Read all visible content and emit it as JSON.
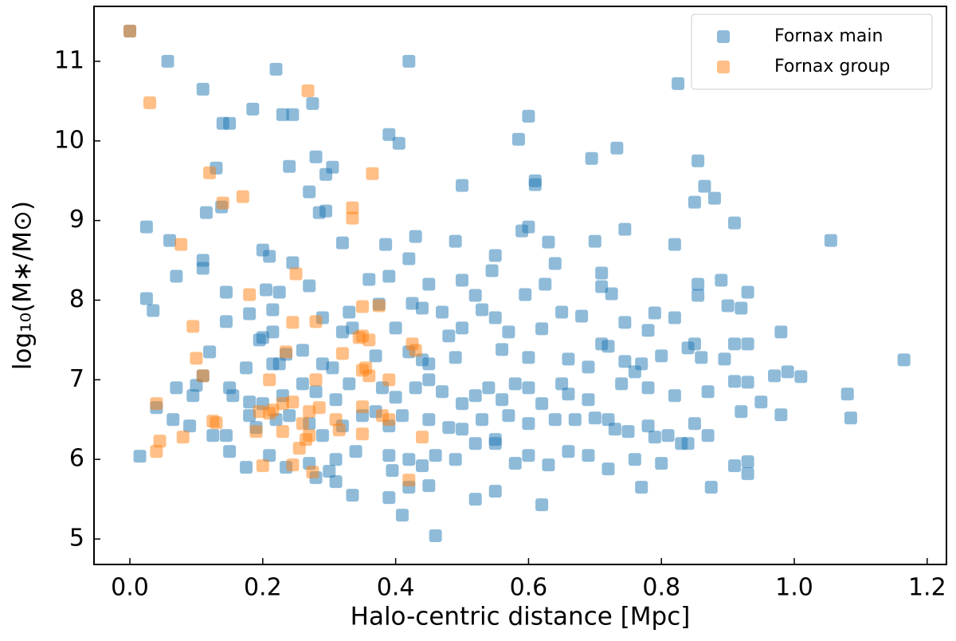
{
  "chart_data": {
    "type": "scatter",
    "xlabel": "Halo-centric distance [Mpc]",
    "ylabel": "log₁₀(M∗/M⊙)",
    "xlim": [
      -0.054,
      1.229
    ],
    "ylim": [
      4.68,
      11.69
    ],
    "xticks": [
      {
        "value": 0,
        "label": "0.0"
      },
      0.2,
      0.4,
      0.6,
      0.8,
      {
        "value": 1,
        "label": "1.0"
      },
      1.2
    ],
    "yticks": [
      5,
      6,
      7,
      8,
      9,
      10,
      11
    ],
    "legend": "upper right",
    "series": [
      {
        "name": "Fornax main",
        "color": "#1f77b4",
        "x": [
          0.0,
          0.057,
          0.11,
          0.22,
          0.42,
          0.825,
          0.275,
          0.185,
          0.14,
          0.15,
          0.23,
          0.245,
          0.39,
          0.405,
          0.6,
          0.585,
          0.733,
          0.695,
          0.855,
          0.28,
          0.13,
          0.24,
          0.295,
          0.305,
          0.27,
          0.5,
          0.61,
          0.61,
          0.865,
          0.88,
          0.85,
          0.115,
          0.138,
          0.285,
          0.295,
          0.025,
          0.6,
          0.59,
          0.745,
          0.91,
          1.055,
          0.06,
          0.7,
          0.63,
          0.43,
          0.49,
          0.32,
          0.385,
          0.82,
          0.2,
          0.11,
          0.11,
          0.21,
          0.245,
          0.42,
          0.55,
          0.64,
          0.07,
          0.39,
          0.36,
          0.5,
          0.545,
          0.71,
          0.89,
          0.855,
          0.625,
          0.45,
          0.27,
          0.205,
          0.145,
          0.225,
          0.52,
          0.595,
          0.71,
          0.725,
          0.93,
          0.025,
          0.035,
          0.855,
          0.425,
          0.44,
          0.375,
          0.33,
          0.29,
          0.18,
          0.215,
          0.47,
          0.53,
          0.65,
          0.68,
          0.79,
          0.82,
          0.92,
          0.9,
          0.145,
          0.2,
          0.215,
          0.195,
          0.32,
          0.335,
          0.4,
          0.48,
          0.5,
          0.55,
          0.57,
          0.62,
          0.71,
          0.72,
          0.745,
          0.78,
          0.85,
          0.84,
          0.91,
          0.98,
          0.93,
          0.12,
          0.175,
          0.215,
          0.225,
          0.235,
          0.26,
          0.29,
          0.305,
          0.37,
          0.42,
          0.44,
          0.45,
          0.49,
          0.56,
          0.6,
          0.66,
          0.69,
          0.745,
          0.76,
          0.77,
          0.8,
          0.86,
          0.895,
          0.97,
          0.99,
          1.01,
          1.165,
          0.11,
          0.1,
          0.07,
          0.095,
          0.15,
          0.155,
          0.18,
          0.2,
          0.23,
          0.26,
          0.28,
          0.31,
          0.33,
          0.38,
          0.4,
          0.43,
          0.45,
          0.47,
          0.5,
          0.52,
          0.54,
          0.56,
          0.58,
          0.6,
          0.62,
          0.65,
          0.66,
          0.69,
          0.72,
          0.74,
          0.78,
          0.82,
          0.87,
          0.91,
          0.93,
          0.95,
          0.04,
          0.065,
          0.09,
          0.125,
          0.145,
          0.18,
          0.19,
          0.22,
          0.24,
          0.27,
          0.29,
          0.32,
          0.35,
          0.37,
          0.39,
          0.41,
          0.45,
          0.48,
          0.5,
          0.53,
          0.55,
          0.57,
          0.6,
          0.64,
          0.67,
          0.7,
          0.73,
          0.75,
          0.78,
          0.79,
          0.81,
          0.83,
          0.85,
          0.87,
          0.92,
          0.98,
          1.08,
          1.085,
          0.015,
          0.15,
          0.175,
          0.21,
          0.235,
          0.27,
          0.3,
          0.31,
          0.34,
          0.39,
          0.42,
          0.44,
          0.46,
          0.49,
          0.52,
          0.55,
          0.58,
          0.6,
          0.63,
          0.66,
          0.69,
          0.72,
          0.76,
          0.8,
          0.84,
          0.91,
          0.93,
          0.93,
          0.28,
          0.31,
          0.335,
          0.39,
          0.42,
          0.45,
          0.52,
          0.55,
          0.77,
          0.875,
          0.62,
          0.41,
          0.46,
          0.395
        ],
        "values": [
          11.38,
          11.0,
          10.65,
          10.9,
          11.0,
          10.72,
          10.47,
          10.4,
          10.22,
          10.22,
          10.33,
          10.33,
          10.08,
          9.97,
          10.31,
          10.02,
          9.91,
          9.78,
          9.75,
          9.8,
          9.66,
          9.68,
          9.58,
          9.67,
          9.36,
          9.44,
          9.5,
          9.45,
          9.43,
          9.28,
          9.23,
          9.1,
          9.17,
          9.1,
          9.12,
          8.92,
          8.92,
          8.87,
          8.89,
          8.97,
          8.75,
          8.75,
          8.74,
          8.73,
          8.8,
          8.74,
          8.72,
          8.7,
          8.7,
          8.63,
          8.5,
          8.4,
          8.55,
          8.47,
          8.52,
          8.56,
          8.46,
          8.3,
          8.3,
          8.26,
          8.25,
          8.37,
          8.34,
          8.25,
          8.2,
          8.2,
          8.2,
          8.18,
          8.13,
          8.1,
          8.1,
          8.06,
          8.07,
          8.17,
          8.08,
          8.1,
          8.02,
          7.87,
          8.06,
          7.96,
          7.9,
          7.95,
          7.85,
          7.78,
          7.83,
          7.88,
          7.85,
          7.88,
          7.85,
          7.8,
          7.84,
          7.78,
          7.9,
          7.93,
          7.73,
          7.53,
          7.6,
          7.5,
          7.6,
          7.65,
          7.65,
          7.55,
          7.65,
          7.78,
          7.6,
          7.64,
          7.45,
          7.42,
          7.72,
          7.62,
          7.45,
          7.4,
          7.45,
          7.6,
          7.45,
          7.35,
          7.15,
          7.2,
          7.2,
          7.32,
          7.37,
          7.2,
          7.15,
          7.3,
          7.35,
          7.25,
          7.2,
          7.28,
          7.38,
          7.28,
          7.26,
          7.16,
          7.23,
          7.1,
          7.2,
          7.3,
          7.28,
          7.26,
          7.05,
          7.1,
          7.04,
          7.25,
          7.05,
          6.93,
          6.9,
          6.8,
          6.9,
          6.8,
          6.72,
          6.7,
          6.8,
          6.95,
          6.85,
          6.75,
          6.95,
          6.9,
          6.78,
          6.9,
          7.0,
          6.85,
          6.7,
          6.8,
          6.9,
          6.75,
          6.95,
          6.9,
          6.7,
          6.95,
          6.82,
          6.75,
          6.5,
          6.95,
          6.9,
          6.8,
          6.85,
          6.98,
          6.97,
          6.72,
          6.65,
          6.5,
          6.42,
          6.3,
          6.3,
          6.55,
          6.4,
          6.5,
          6.55,
          6.45,
          6.3,
          6.42,
          6.55,
          6.6,
          6.42,
          6.55,
          6.5,
          6.4,
          6.38,
          6.5,
          6.2,
          6.55,
          6.45,
          6.5,
          6.5,
          6.52,
          6.38,
          6.35,
          6.42,
          6.28,
          6.3,
          6.2,
          6.45,
          6.3,
          6.6,
          6.56,
          6.82,
          6.52,
          6.04,
          6.1,
          5.9,
          6.05,
          5.9,
          5.95,
          5.85,
          6.0,
          6.1,
          6.05,
          6.0,
          5.92,
          6.05,
          6.0,
          6.2,
          6.25,
          5.95,
          6.05,
          5.93,
          6.1,
          6.05,
          5.88,
          6.0,
          5.95,
          6.2,
          5.92,
          5.82,
          5.97,
          5.77,
          5.72,
          5.55,
          5.52,
          5.65,
          5.67,
          5.5,
          5.6,
          5.65,
          5.65,
          5.43,
          5.3,
          5.04,
          5.86
        ]
      },
      {
        "name": "Fornax group",
        "color": "#ff7f0e",
        "x": [
          0.0,
          0.03,
          0.268,
          0.12,
          0.14,
          0.17,
          0.365,
          0.335,
          0.335,
          0.077,
          0.25,
          0.18,
          0.095,
          0.245,
          0.28,
          0.35,
          0.375,
          0.35,
          0.36,
          0.345,
          0.235,
          0.32,
          0.425,
          0.43,
          0.1,
          0.11,
          0.35,
          0.36,
          0.355,
          0.39,
          0.28,
          0.21,
          0.04,
          0.195,
          0.21,
          0.215,
          0.23,
          0.245,
          0.27,
          0.285,
          0.26,
          0.31,
          0.35,
          0.38,
          0.39,
          0.125,
          0.13,
          0.19,
          0.23,
          0.27,
          0.265,
          0.315,
          0.35,
          0.44,
          0.045,
          0.04,
          0.08,
          0.2,
          0.245,
          0.275,
          0.42,
          0.255
        ],
        "values": [
          11.38,
          10.48,
          10.63,
          9.6,
          9.22,
          9.3,
          9.59,
          9.16,
          9.03,
          8.7,
          8.33,
          8.07,
          7.67,
          7.72,
          7.73,
          7.92,
          7.93,
          7.55,
          7.5,
          7.53,
          7.35,
          7.33,
          7.45,
          7.37,
          7.27,
          7.05,
          7.12,
          7.05,
          7.15,
          7.0,
          7.0,
          7.0,
          6.7,
          6.6,
          6.58,
          6.62,
          6.7,
          6.72,
          6.6,
          6.65,
          6.45,
          6.5,
          6.66,
          6.55,
          6.5,
          6.48,
          6.46,
          6.35,
          6.35,
          6.3,
          6.25,
          6.37,
          6.32,
          6.28,
          6.23,
          6.1,
          6.28,
          5.92,
          5.93,
          5.84,
          5.74,
          6.14
        ]
      }
    ]
  }
}
